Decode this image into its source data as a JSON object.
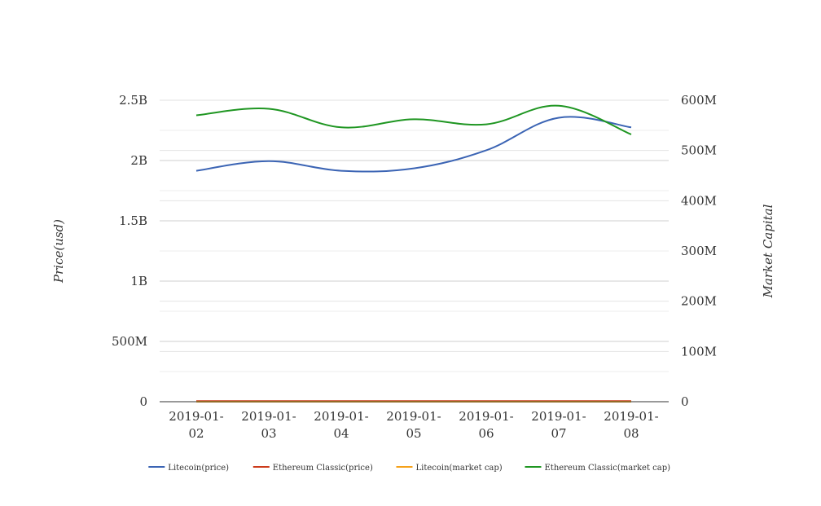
{
  "chart_data": {
    "type": "line",
    "x": [
      "2019-01-02",
      "2019-01-03",
      "2019-01-04",
      "2019-01-05",
      "2019-01-06",
      "2019-01-07",
      "2019-01-08"
    ],
    "x_tick_lines": [
      [
        "2019-01-",
        "02"
      ],
      [
        "2019-01-",
        "03"
      ],
      [
        "2019-01-",
        "04"
      ],
      [
        "2019-01-",
        "05"
      ],
      [
        "2019-01-",
        "06"
      ],
      [
        "2019-01-",
        "07"
      ],
      [
        "2019-01-",
        "08"
      ]
    ],
    "y_left": {
      "label": "Price(usd)",
      "min": 0,
      "max": 2500000000,
      "ticks": [
        0,
        500000000,
        1000000000,
        1500000000,
        2000000000,
        2500000000
      ],
      "tick_labels": [
        "0",
        "500M",
        "1B",
        "1.5B",
        "2B",
        "2.5B"
      ]
    },
    "y_right": {
      "label": "Market Capital",
      "min": 0,
      "max": 600000000,
      "ticks": [
        0,
        100000000,
        200000000,
        300000000,
        400000000,
        500000000,
        600000000
      ],
      "tick_labels": [
        "0",
        "100M",
        "200M",
        "300M",
        "400M",
        "500M",
        "600M"
      ]
    },
    "series": [
      {
        "name": "Litecoin(price)",
        "axis": "left",
        "color": "#3b64b4",
        "values": [
          1915000000,
          1995000000,
          1915000000,
          1935000000,
          2085000000,
          2355000000,
          2275000000
        ]
      },
      {
        "name": "Ethereum Classic(price)",
        "axis": "left",
        "color": "#cc3b1b",
        "values": [
          5000000,
          5000000,
          5000000,
          5000000,
          5000000,
          5000000,
          5000000
        ]
      },
      {
        "name": "Litecoin(market cap)",
        "axis": "right",
        "color": "#f5a11a",
        "values": [
          0,
          0,
          0,
          0,
          0,
          0,
          0
        ]
      },
      {
        "name": "Ethereum Classic(market cap)",
        "axis": "right",
        "color": "#1f9622",
        "values": [
          570000000,
          583000000,
          546000000,
          562000000,
          552000000,
          589000000,
          532000000
        ]
      }
    ],
    "grid": true,
    "legend_position": "bottom"
  }
}
